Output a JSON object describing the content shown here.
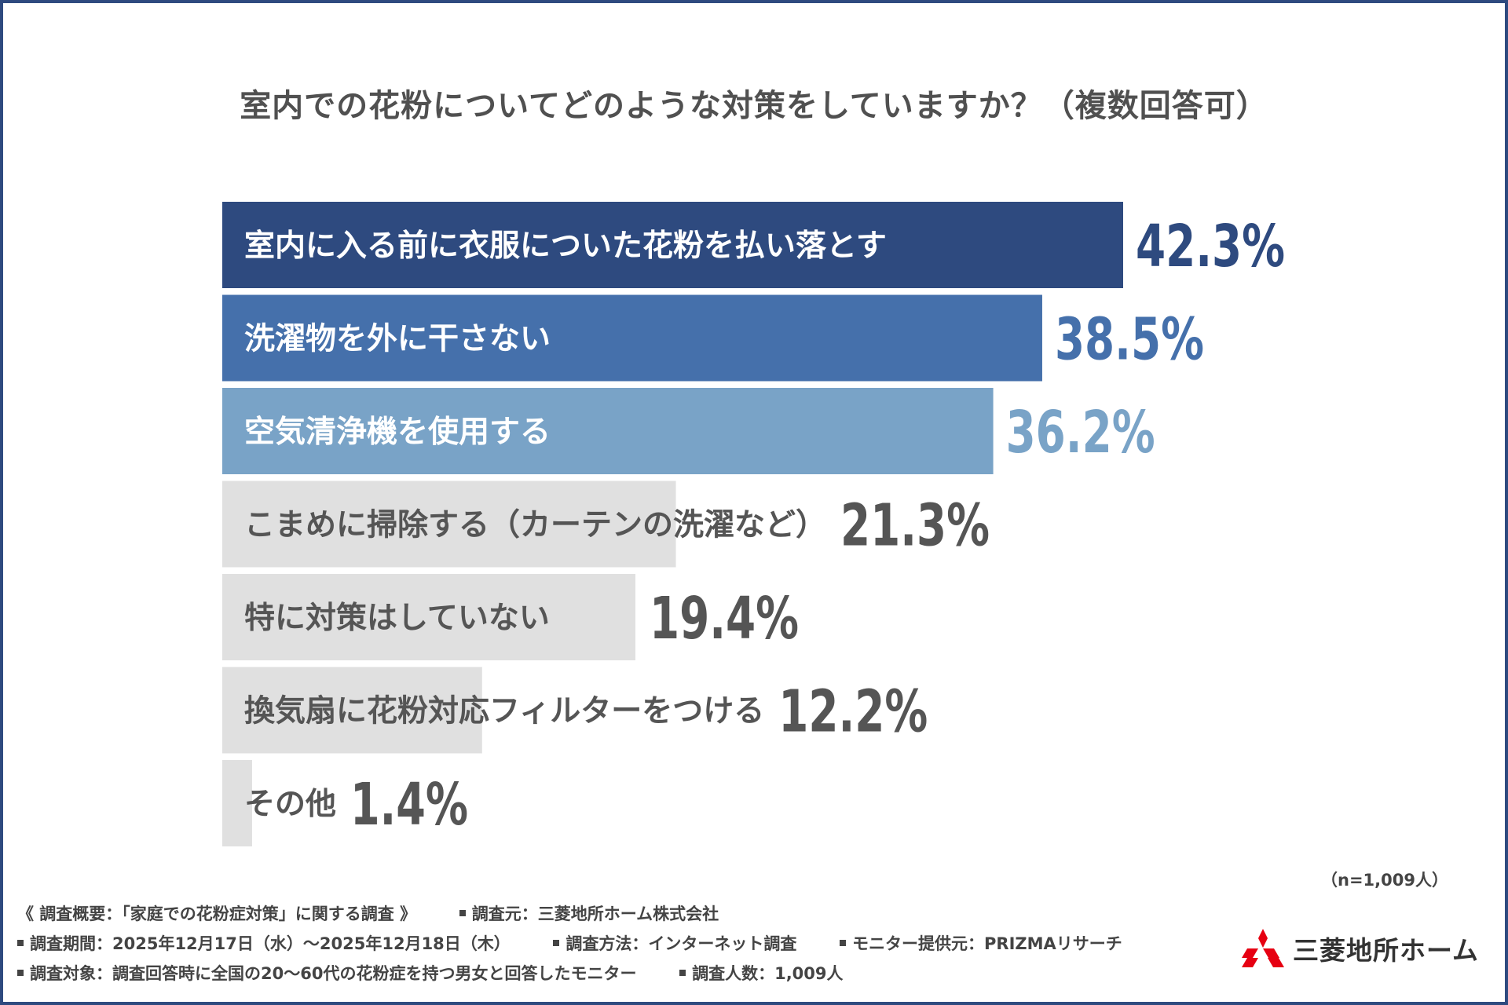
{
  "chart_data": {
    "type": "bar",
    "orientation": "horizontal",
    "title": "室内での花粉についてどのような対策をしていますか？（複数回答可）",
    "categories": [
      "室内に入る前に衣服についた花粉を払い落とす",
      "洗濯物を外に干さない",
      "空気清浄機を使用する",
      "こまめに掃除する（カーテンの洗濯など）",
      "特に対策はしていない",
      "換気扇に花粉対応フィルターをつける",
      "その他"
    ],
    "values": [
      42.3,
      38.5,
      36.2,
      21.3,
      19.4,
      12.2,
      1.4
    ],
    "value_labels": [
      "42.3%",
      "38.5%",
      "36.2%",
      "21.3%",
      "19.4%",
      "12.2%",
      "1.4%"
    ],
    "unit": "%",
    "xlim": [
      0,
      100
    ],
    "bar_colors": [
      "#2e4a7f",
      "#4570ab",
      "#79a3c7",
      "#e0e0e0",
      "#e0e0e0",
      "#e0e0e0",
      "#e0e0e0"
    ],
    "label_colors": [
      "#ffffff",
      "#ffffff",
      "#ffffff",
      "#555555",
      "#555555",
      "#555555",
      "#555555"
    ],
    "value_colors": [
      "#2e4a7f",
      "#4570ab",
      "#79a3c7",
      "#555555",
      "#555555",
      "#555555",
      "#555555"
    ],
    "sample_note": "（n=1,009人）"
  },
  "footer": {
    "overview": "《 調査概要：「家庭での花粉症対策」に関する調査 》",
    "source": "調査元：三菱地所ホーム株式会社",
    "period": "調査期間：2025年12月17日（水）～2025年12月18日（木）",
    "method": "調査方法：インターネット調査",
    "monitor": "モニター提供元：PRIZMAリサーチ",
    "target": "調査対象：調査回答時に全国の20～60代の花粉症を持つ男女と回答したモニター",
    "count": "調査人数：1,009人"
  },
  "logo": {
    "name": "三菱地所ホーム",
    "color": "#e60012"
  }
}
